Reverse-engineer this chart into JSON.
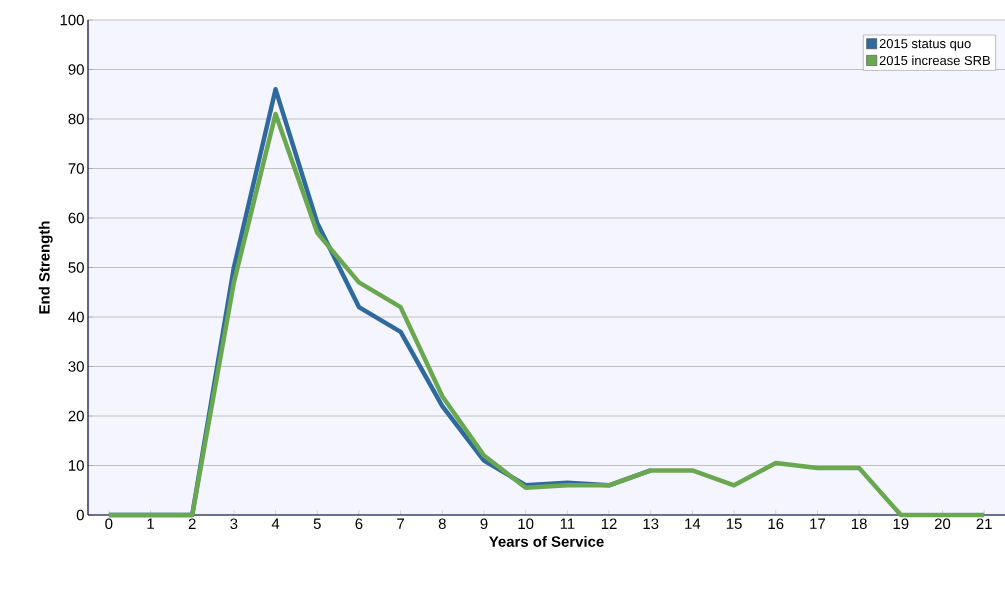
{
  "chart_data": {
    "type": "line",
    "xlabel": "Years of Service",
    "ylabel": "End Strength",
    "x": [
      0,
      1,
      2,
      3,
      4,
      5,
      6,
      7,
      8,
      9,
      10,
      11,
      12,
      13,
      14,
      15,
      16,
      17,
      18,
      19,
      20,
      21
    ],
    "series": [
      {
        "name": "2015 status quo",
        "color": "#2e6a9e",
        "values": [
          0,
          0,
          0,
          50,
          86,
          59,
          42,
          37,
          22,
          11,
          6,
          6.5,
          6,
          9,
          null,
          null,
          null,
          null,
          null,
          null,
          null,
          null
        ]
      },
      {
        "name": "2015 increase SRB",
        "color": "#6aa84f",
        "values": [
          0,
          0,
          0,
          47,
          81,
          57,
          47,
          42,
          24,
          12,
          5.5,
          6,
          6,
          9,
          9,
          6,
          10.5,
          9.5,
          9.5,
          0,
          0,
          0
        ]
      }
    ],
    "xlim": [
      -0.5,
      21.5
    ],
    "ylim": [
      0,
      100
    ],
    "xticks": [
      0,
      1,
      2,
      3,
      4,
      5,
      6,
      7,
      8,
      9,
      10,
      11,
      12,
      13,
      14,
      15,
      16,
      17,
      18,
      19,
      20,
      21
    ],
    "yticks": [
      0,
      10,
      20,
      30,
      40,
      50,
      60,
      70,
      80,
      90,
      100
    ],
    "grid": "y",
    "legend": "top right",
    "marker": "none",
    "line_style": "solid"
  }
}
